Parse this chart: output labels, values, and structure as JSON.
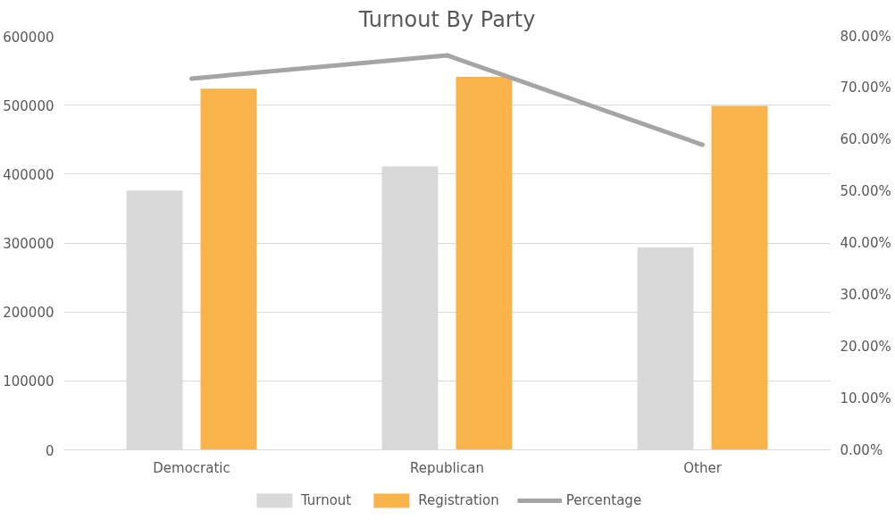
{
  "chart_data": {
    "type": "bar",
    "title": "Turnout By Party",
    "categories": [
      "Democratic",
      "Republican",
      "Other"
    ],
    "series": [
      {
        "name": "Turnout",
        "color": "#d9d9d9",
        "values": [
          376000,
          411000,
          294000
        ]
      },
      {
        "name": "Registration",
        "color": "#f8b34a",
        "values": [
          524000,
          541000,
          499000
        ]
      },
      {
        "name": "Percentage",
        "type": "line",
        "axis": "y2",
        "color": "#a5a5a5",
        "values": [
          71.8,
          76.3,
          59.0
        ]
      }
    ],
    "ylim": [
      0,
      600000
    ],
    "yticks": [
      0,
      100000,
      200000,
      300000,
      400000,
      500000,
      600000
    ],
    "y2lim": [
      0,
      80
    ],
    "y2ticks": [
      {
        "value": 0,
        "label": "0.00%"
      },
      {
        "value": 10,
        "label": "10.00%"
      },
      {
        "value": 20,
        "label": "20.00%"
      },
      {
        "value": 30,
        "label": "30.00%"
      },
      {
        "value": 40,
        "label": "40.00%"
      },
      {
        "value": 50,
        "label": "50.00%"
      },
      {
        "value": 60,
        "label": "60.00%"
      },
      {
        "value": 70,
        "label": "70.00%"
      },
      {
        "value": 80,
        "label": "80.00%"
      }
    ],
    "grid": "y",
    "legend": "bottom",
    "marker": "none",
    "line_style": "solid"
  }
}
